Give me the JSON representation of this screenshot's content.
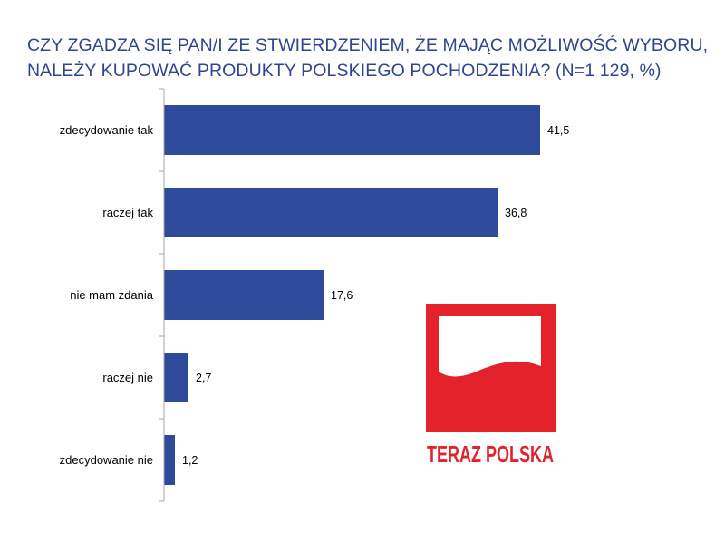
{
  "chart_data": {
    "type": "bar",
    "orientation": "horizontal",
    "title_line1": "CZY ZGADZA SIĘ PAN/I ZE STWIERDZENIEM, ŻE MAJĄC MOŻLIWOŚĆ WYBORU,",
    "title_line2": "NALEŻY KUPOWAĆ PRODUKTY POLSKIEGO POCHODZENIA? (N=1 129, %)",
    "categories": [
      "zdecydowanie tak",
      "raczej tak",
      "nie mam zdania",
      "raczej nie",
      "zdecydowanie nie"
    ],
    "values": [
      41.5,
      36.8,
      17.6,
      2.7,
      1.2
    ],
    "value_labels": [
      "41,5",
      "36,8",
      "17,6",
      "2,7",
      "1,2"
    ],
    "xlim": [
      0,
      45
    ],
    "grid": false,
    "legend": "none",
    "bar_color": "#2E4A9A"
  },
  "logo": {
    "text": "TERAZ POLSKA",
    "red": "#E3222B"
  },
  "colors": {
    "title": "#2E4596"
  }
}
